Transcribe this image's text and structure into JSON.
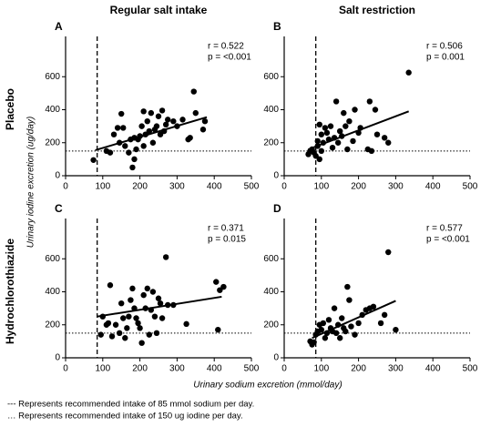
{
  "column_titles": [
    "Regular salt intake",
    "Salt restriction"
  ],
  "row_titles": [
    "Placebo",
    "Hydrochlorothiazide"
  ],
  "y_label": "Urinary iodine excretion (ug/day)",
  "x_label": "Urinary sodium excretion (mmol/day)",
  "footnotes": [
    "--- Represents recommended intake of 85 mmol sodium per day.",
    "… Represents recommended intake of 150 ug iodine per day."
  ],
  "chart_data": [
    {
      "type": "scatter",
      "title": "A",
      "color": "#000000",
      "x": [
        75,
        110,
        120,
        130,
        140,
        145,
        150,
        155,
        160,
        170,
        175,
        180,
        185,
        185,
        190,
        195,
        200,
        205,
        210,
        210,
        215,
        220,
        225,
        230,
        235,
        240,
        245,
        250,
        255,
        260,
        265,
        270,
        275,
        290,
        300,
        315,
        330,
        335,
        345,
        350,
        370,
        375
      ],
      "y": [
        95,
        150,
        140,
        250,
        290,
        200,
        375,
        290,
        180,
        140,
        220,
        50,
        230,
        100,
        160,
        220,
        240,
        300,
        390,
        180,
        250,
        330,
        270,
        380,
        200,
        280,
        300,
        360,
        250,
        395,
        270,
        310,
        340,
        330,
        300,
        340,
        220,
        230,
        510,
        380,
        280,
        330
      ],
      "xlim": [
        0,
        500
      ],
      "xticks": [
        0,
        100,
        200,
        300,
        400,
        500
      ],
      "ylim": [
        0,
        800
      ],
      "yticks": [
        0,
        200,
        400,
        600
      ],
      "annotations": [
        "r = 0.522",
        "p = <0.001"
      ],
      "fit": {
        "x": [
          80,
          380
        ],
        "y": [
          155,
          355
        ]
      },
      "vline": 85,
      "hline": 150
    },
    {
      "type": "scatter",
      "title": "B",
      "color": "#000000",
      "x": [
        65,
        70,
        75,
        80,
        85,
        90,
        90,
        95,
        95,
        100,
        100,
        105,
        110,
        115,
        120,
        125,
        130,
        135,
        140,
        145,
        150,
        155,
        160,
        165,
        170,
        175,
        185,
        190,
        200,
        205,
        225,
        230,
        235,
        245,
        250,
        270,
        280,
        335
      ],
      "y": [
        130,
        150,
        160,
        140,
        120,
        180,
        210,
        310,
        100,
        250,
        150,
        200,
        290,
        260,
        220,
        300,
        170,
        230,
        450,
        200,
        270,
        240,
        380,
        300,
        160,
        330,
        210,
        400,
        260,
        290,
        160,
        450,
        150,
        400,
        250,
        230,
        200,
        625
      ],
      "xlim": [
        0,
        500
      ],
      "xticks": [
        0,
        100,
        200,
        300,
        400,
        500
      ],
      "ylim": [
        0,
        800
      ],
      "yticks": [
        0,
        200,
        400,
        600
      ],
      "annotations": [
        "r = 0.506",
        "p = 0.001"
      ],
      "fit": {
        "x": [
          65,
          335
        ],
        "y": [
          160,
          390
        ]
      },
      "vline": 85,
      "hline": 150
    },
    {
      "type": "scatter",
      "title": "C",
      "color": "#000000",
      "x": [
        95,
        100,
        110,
        115,
        120,
        125,
        135,
        145,
        150,
        155,
        160,
        165,
        170,
        175,
        180,
        185,
        190,
        195,
        200,
        205,
        210,
        215,
        220,
        225,
        230,
        235,
        240,
        245,
        250,
        255,
        260,
        270,
        275,
        290,
        325,
        405,
        410,
        415,
        425
      ],
      "y": [
        140,
        250,
        200,
        210,
        440,
        130,
        200,
        150,
        330,
        240,
        120,
        180,
        250,
        350,
        420,
        300,
        240,
        210,
        180,
        90,
        380,
        300,
        420,
        140,
        290,
        400,
        250,
        150,
        360,
        330,
        240,
        610,
        320,
        320,
        205,
        460,
        170,
        410,
        430
      ],
      "xlim": [
        0,
        500
      ],
      "xticks": [
        0,
        100,
        200,
        300,
        400,
        500
      ],
      "ylim": [
        0,
        800
      ],
      "yticks": [
        0,
        200,
        400,
        600
      ],
      "annotations": [
        "r = 0.371",
        "p = 0.015"
      ],
      "fit": {
        "x": [
          85,
          420
        ],
        "y": [
          250,
          370
        ]
      },
      "vline": 85,
      "hline": 150
    },
    {
      "type": "scatter",
      "title": "D",
      "color": "#000000",
      "x": [
        70,
        75,
        80,
        85,
        90,
        95,
        100,
        105,
        110,
        115,
        120,
        125,
        130,
        135,
        140,
        145,
        150,
        155,
        160,
        165,
        170,
        175,
        180,
        190,
        200,
        210,
        220,
        230,
        240,
        260,
        270,
        280,
        300
      ],
      "y": [
        100,
        80,
        95,
        140,
        160,
        200,
        170,
        210,
        120,
        150,
        230,
        180,
        160,
        300,
        150,
        200,
        120,
        240,
        180,
        160,
        430,
        350,
        190,
        140,
        210,
        260,
        290,
        300,
        310,
        210,
        260,
        640,
        170
      ],
      "xlim": [
        0,
        500
      ],
      "xticks": [
        0,
        100,
        200,
        300,
        400,
        500
      ],
      "ylim": [
        0,
        800
      ],
      "yticks": [
        0,
        200,
        400,
        600
      ],
      "annotations": [
        "r = 0.577",
        "p = <0.001"
      ],
      "fit": {
        "x": [
          75,
          300
        ],
        "y": [
          120,
          345
        ]
      },
      "vline": 85,
      "hline": 150
    }
  ]
}
